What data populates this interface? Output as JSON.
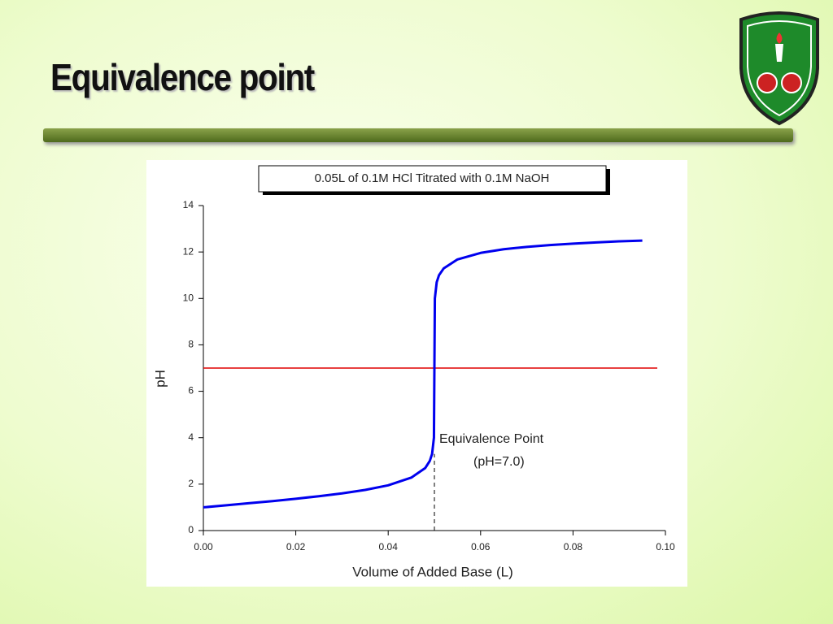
{
  "slide": {
    "title": "Equivalence point"
  },
  "chart_data": {
    "type": "line",
    "title": "0.05L of 0.1M HCl Titrated with 0.1M NaOH",
    "x_label": "Volume of Added Base (L)",
    "y_label": "pH",
    "x": [
      0,
      0.005,
      0.01,
      0.015,
      0.02,
      0.025,
      0.03,
      0.035,
      0.04,
      0.045,
      0.048,
      0.049,
      0.0495,
      0.0499,
      0.05,
      0.0501,
      0.0505,
      0.051,
      0.052,
      0.055,
      0.06,
      0.065,
      0.07,
      0.075,
      0.08,
      0.085,
      0.09,
      0.095
    ],
    "series": [
      {
        "color": "#0000ee",
        "values": [
          1.0,
          1.09,
          1.18,
          1.27,
          1.37,
          1.48,
          1.6,
          1.75,
          1.95,
          2.28,
          2.69,
          3.0,
          3.3,
          4.0,
          7.0,
          10.0,
          10.7,
          11.0,
          11.29,
          11.68,
          11.96,
          12.12,
          12.22,
          12.3,
          12.36,
          12.41,
          12.46,
          12.49
        ]
      }
    ],
    "hline": 7,
    "hline_color": "#e00000",
    "vline": 0.05,
    "annotations": [
      "Equivalence Point",
      "(pH=7.0)"
    ],
    "xlim": [
      0,
      0.1
    ],
    "xticks": [
      {
        "value": 0,
        "label": "0.00"
      },
      0.02,
      0.04,
      0.06,
      0.08,
      {
        "value": 0.1,
        "label": "0.10"
      }
    ],
    "ylim": [
      0,
      14
    ],
    "yticks": [
      0,
      2,
      4,
      6,
      8,
      10,
      12,
      14
    ]
  }
}
